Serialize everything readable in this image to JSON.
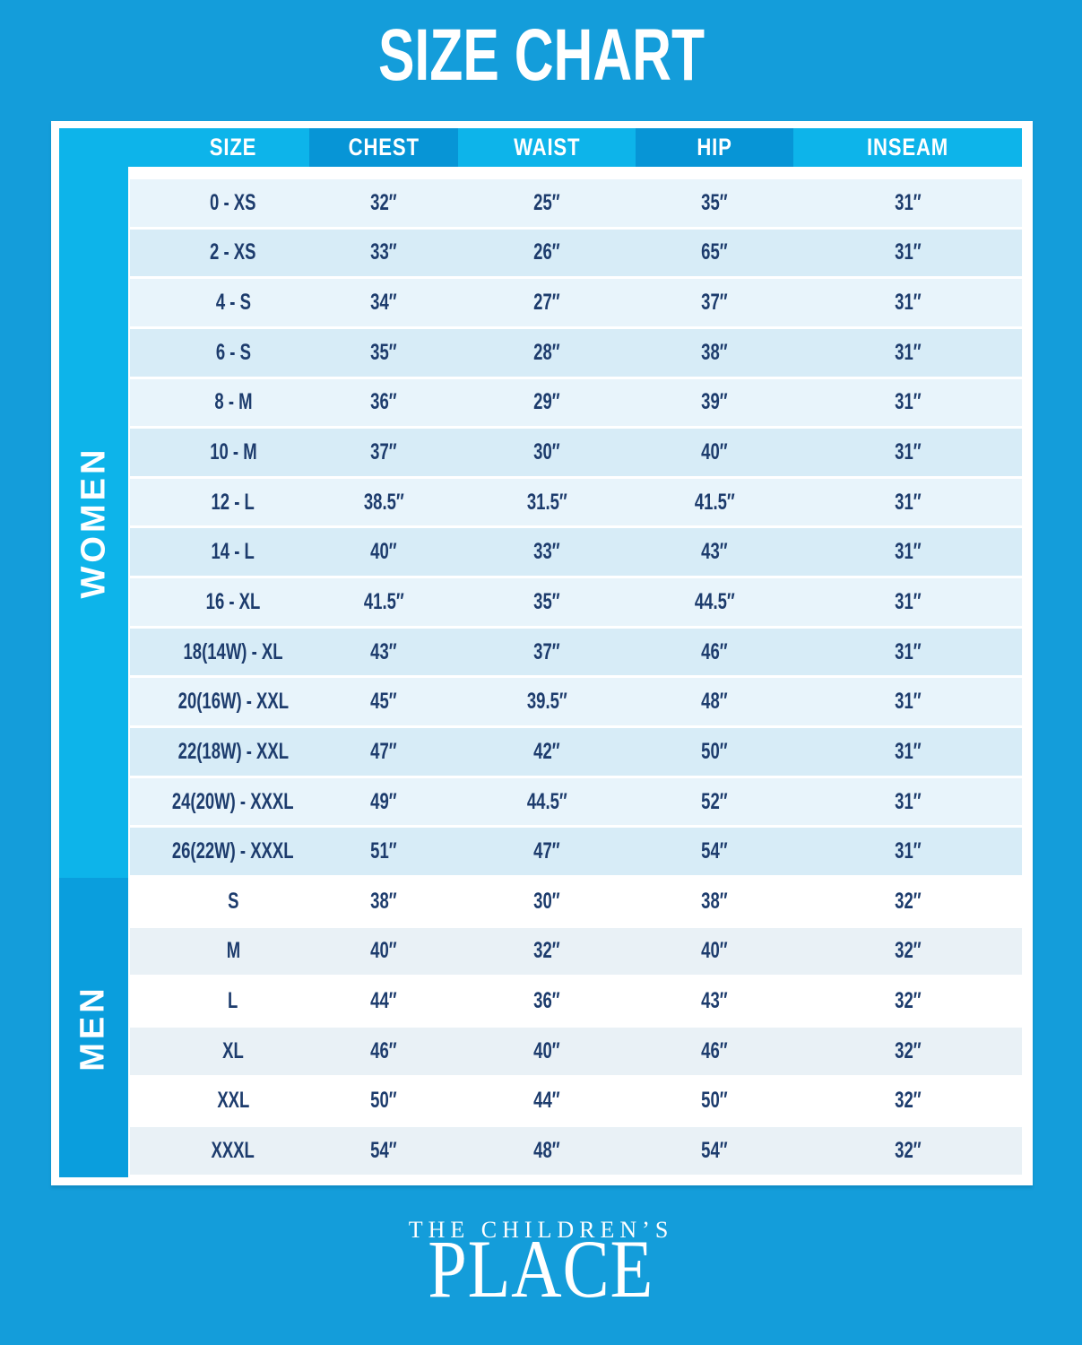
{
  "title": "SIZE CHART",
  "chart_data": {
    "type": "table",
    "title": "SIZE CHART",
    "columns": [
      "SIZE",
      "CHEST",
      "WAIST",
      "HIP",
      "INSEAM"
    ],
    "sections": [
      {
        "label": "WOMEN",
        "rows": [
          [
            "0 - XS",
            "32″",
            "25″",
            "35″",
            "31″"
          ],
          [
            "2 - XS",
            "33″",
            "26″",
            "65″",
            "31″"
          ],
          [
            "4 - S",
            "34″",
            "27″",
            "37″",
            "31″"
          ],
          [
            "6 - S",
            "35″",
            "28″",
            "38″",
            "31″"
          ],
          [
            "8 - M",
            "36″",
            "29″",
            "39″",
            "31″"
          ],
          [
            "10 - M",
            "37″",
            "30″",
            "40″",
            "31″"
          ],
          [
            "12 - L",
            "38.5″",
            "31.5″",
            "41.5″",
            "31″"
          ],
          [
            "14 - L",
            "40″",
            "33″",
            "43″",
            "31″"
          ],
          [
            "16 - XL",
            "41.5″",
            "35″",
            "44.5″",
            "31″"
          ],
          [
            "18(14W) - XL",
            "43″",
            "37″",
            "46″",
            "31″"
          ],
          [
            "20(16W) - XXL",
            "45″",
            "39.5″",
            "48″",
            "31″"
          ],
          [
            "22(18W) - XXL",
            "47″",
            "42″",
            "50″",
            "31″"
          ],
          [
            "24(20W) - XXXL",
            "49″",
            "44.5″",
            "52″",
            "31″"
          ],
          [
            "26(22W) - XXXL",
            "51″",
            "47″",
            "54″",
            "31″"
          ]
        ]
      },
      {
        "label": "MEN",
        "rows": [
          [
            "S",
            "38″",
            "30″",
            "38″",
            "32″"
          ],
          [
            "M",
            "40″",
            "32″",
            "40″",
            "32″"
          ],
          [
            "L",
            "44″",
            "36″",
            "43″",
            "32″"
          ],
          [
            "XL",
            "46″",
            "40″",
            "46″",
            "32″"
          ],
          [
            "XXL",
            "50″",
            "44″",
            "50″",
            "32″"
          ],
          [
            "XXXL",
            "54″",
            "48″",
            "54″",
            "32″"
          ]
        ]
      }
    ],
    "layout": {
      "grid": "row dividers only",
      "row_alternation": "women: pale-blue / light-blue; men: white / pale-gray-blue"
    }
  },
  "brand": {
    "line1": "THE CHILDREN’S",
    "line2": "PLACE"
  },
  "colors": {
    "background": "#149dda",
    "header_light": "#0db4ea",
    "header_dark": "#0795d6",
    "men_strip": "#0a9edd",
    "women_row_light": "#e8f4fb",
    "women_row_dark": "#d7ecf7",
    "men_row_dark": "#e9f1f6",
    "text_navy": "#1d3c6d",
    "frame": "#ffffff"
  }
}
